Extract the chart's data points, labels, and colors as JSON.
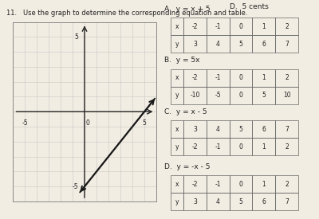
{
  "header_text": "D.  5 cents",
  "title_text": "11.   Use the graph to determine the corresponding equation and table.",
  "graph_xlim": [
    -6,
    6
  ],
  "graph_ylim": [
    -6,
    6
  ],
  "graph_xtick_labels": [
    [
      -5,
      "-5"
    ],
    [
      0,
      "0"
    ],
    [
      5,
      "5"
    ]
  ],
  "graph_ytick_labels": [
    [
      5,
      "5"
    ],
    [
      -5,
      "-5"
    ]
  ],
  "line_equation": "x_minus_5",
  "line_color": "#1a1a1a",
  "line_width": 1.4,
  "options": [
    {
      "letter": "A.",
      "equation": "y = x + 5",
      "row_x": [
        "x",
        "-2",
        "-1",
        "0",
        "1",
        "2"
      ],
      "row_y": [
        "y",
        "3",
        "4",
        "5",
        "6",
        "7"
      ]
    },
    {
      "letter": "B.",
      "equation": "y = 5x",
      "row_x": [
        "x",
        "-2",
        "-1",
        "0",
        "1",
        "2"
      ],
      "row_y": [
        "y",
        "-10",
        "-5",
        "0",
        "5",
        "10"
      ]
    },
    {
      "letter": "C.",
      "equation": "y = x - 5",
      "row_x": [
        "x",
        "3",
        "4",
        "5",
        "6",
        "7"
      ],
      "row_y": [
        "y",
        "-2",
        "-1",
        "0",
        "1",
        "2"
      ]
    },
    {
      "letter": "D.",
      "equation": "y = -x - 5",
      "row_x": [
        "x",
        "-2",
        "-1",
        "0",
        "1",
        "2"
      ],
      "row_y": [
        "y",
        "3",
        "4",
        "5",
        "6",
        "7"
      ]
    }
  ],
  "bg_color": "#f2ede3",
  "grid_color": "#c8c8c8",
  "axis_color": "#222222",
  "table_border_color": "#666666",
  "text_color": "#222222"
}
